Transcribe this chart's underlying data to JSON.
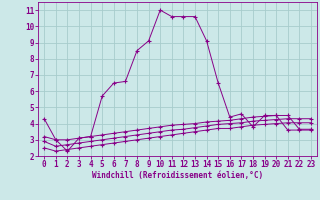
{
  "xlabel": "Windchill (Refroidissement éolien,°C)",
  "background_color": "#cce8e8",
  "line_color": "#880088",
  "xlim": [
    -0.5,
    23.5
  ],
  "ylim": [
    2,
    11.5
  ],
  "xticks": [
    0,
    1,
    2,
    3,
    4,
    5,
    6,
    7,
    8,
    9,
    10,
    11,
    12,
    13,
    14,
    15,
    16,
    17,
    18,
    19,
    20,
    21,
    22,
    23
  ],
  "yticks": [
    2,
    3,
    4,
    5,
    6,
    7,
    8,
    9,
    10,
    11
  ],
  "grid_color": "#a8cccc",
  "series1_x": [
    0,
    1,
    2,
    3,
    4,
    5,
    6,
    7,
    8,
    9,
    10,
    11,
    12,
    13,
    14,
    15,
    16,
    17,
    18,
    19,
    20,
    21,
    22,
    23
  ],
  "series1_y": [
    4.3,
    3.0,
    2.3,
    3.1,
    3.2,
    5.7,
    6.5,
    6.6,
    8.5,
    9.1,
    11.0,
    10.6,
    10.6,
    10.6,
    9.1,
    6.5,
    4.4,
    4.6,
    3.8,
    4.5,
    4.5,
    3.6,
    3.6,
    3.6
  ],
  "series2_x": [
    0,
    1,
    2,
    3,
    4,
    5,
    6,
    7,
    8,
    9,
    10,
    11,
    12,
    13,
    14,
    15,
    16,
    17,
    18,
    19,
    20,
    21,
    22,
    23
  ],
  "series2_y": [
    2.5,
    2.3,
    2.4,
    2.5,
    2.6,
    2.7,
    2.8,
    2.9,
    3.0,
    3.1,
    3.2,
    3.3,
    3.4,
    3.5,
    3.6,
    3.7,
    3.7,
    3.8,
    3.9,
    3.95,
    4.0,
    4.05,
    4.05,
    4.05
  ],
  "series3_x": [
    0,
    1,
    2,
    3,
    4,
    5,
    6,
    7,
    8,
    9,
    10,
    11,
    12,
    13,
    14,
    15,
    16,
    17,
    18,
    19,
    20,
    21,
    22,
    23
  ],
  "series3_y": [
    2.9,
    2.6,
    2.7,
    2.8,
    2.9,
    3.0,
    3.1,
    3.2,
    3.3,
    3.4,
    3.5,
    3.6,
    3.65,
    3.75,
    3.85,
    3.95,
    4.0,
    4.05,
    4.15,
    4.2,
    4.25,
    4.3,
    4.3,
    4.3
  ],
  "series4_x": [
    0,
    1,
    2,
    3,
    4,
    5,
    6,
    7,
    8,
    9,
    10,
    11,
    12,
    13,
    14,
    15,
    16,
    17,
    18,
    19,
    20,
    21,
    22,
    23
  ],
  "series4_y": [
    3.2,
    3.0,
    3.0,
    3.1,
    3.2,
    3.3,
    3.4,
    3.5,
    3.6,
    3.7,
    3.8,
    3.9,
    3.95,
    4.0,
    4.1,
    4.15,
    4.2,
    4.3,
    4.4,
    4.45,
    4.5,
    4.5,
    3.65,
    3.65
  ],
  "tick_fontsize": 5.5,
  "xlabel_fontsize": 5.5
}
